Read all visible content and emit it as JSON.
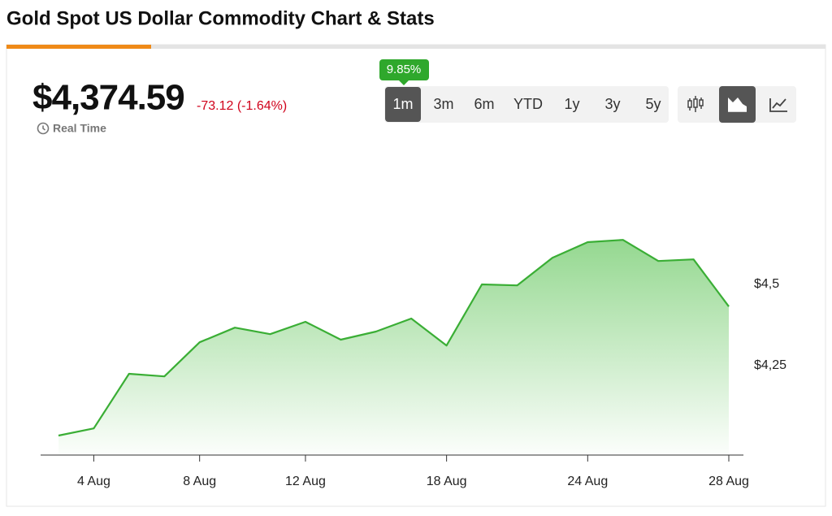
{
  "header": {
    "title": "Gold Spot US Dollar Commodity Chart & Stats"
  },
  "quote": {
    "price": "$4,374.59",
    "change": "-73.12 (-1.64%)",
    "status": "Real Time"
  },
  "range_tooltip": "9.85%",
  "ranges": [
    "1m",
    "3m",
    "6m",
    "YTD",
    "1y",
    "3y",
    "5y"
  ],
  "active_range": 0,
  "chart_data": {
    "type": "area",
    "categories": [
      null,
      "4 Aug",
      null,
      null,
      "8 Aug",
      null,
      null,
      "12 Aug",
      null,
      null,
      null,
      "18 Aug",
      null,
      null,
      null,
      "24 Aug",
      null,
      null,
      null,
      "28 Aug"
    ],
    "values": [
      4035,
      4057,
      4225,
      4217,
      4322,
      4367,
      4347,
      4385,
      4330,
      4355,
      4395,
      4312,
      4500,
      4497,
      4582,
      4630,
      4637,
      4572,
      4577,
      4432
    ],
    "color": "#3aae35",
    "ylim": [
      3975,
      4900
    ],
    "yticks": [
      {
        "value": 4250,
        "label": "$4,25"
      },
      {
        "value": 4500,
        "label": "$4,5"
      }
    ],
    "grid": false
  }
}
